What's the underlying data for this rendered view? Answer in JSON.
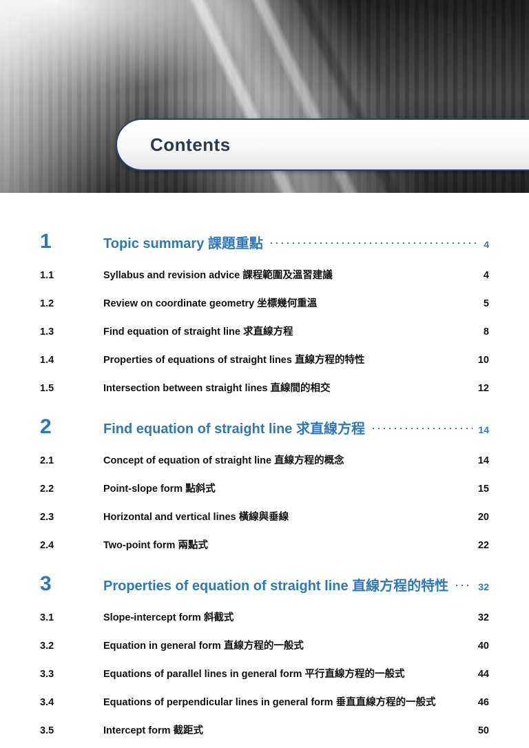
{
  "colors": {
    "accent": "#2f78b6",
    "title_bar_border": "#27456f",
    "body_text": "#111111",
    "background": "#ffffff"
  },
  "typography": {
    "font_family": "Arial / Helvetica",
    "title_fontsize_pt": 20,
    "chapter_num_fontsize_pt": 22,
    "chapter_title_fontsize_pt": 15,
    "sub_fontsize_pt": 11
  },
  "header": {
    "title": "Contents"
  },
  "toc": {
    "leader_style": "dotted",
    "chapters": [
      {
        "num": "1",
        "title": "Topic summary 課題重點",
        "page": "4",
        "sections": [
          {
            "num": "1.1",
            "title": "Syllabus and revision advice 課程範圍及溫習建議",
            "page": "4"
          },
          {
            "num": "1.2",
            "title": "Review on coordinate geometry 坐標幾何重溫",
            "page": "5"
          },
          {
            "num": "1.3",
            "title": "Find equation of straight line 求直線方程",
            "page": "8"
          },
          {
            "num": "1.4",
            "title": "Properties of equations of straight lines 直線方程的特性",
            "page": "10"
          },
          {
            "num": "1.5",
            "title": "Intersection between straight lines 直線間的相交",
            "page": "12"
          }
        ]
      },
      {
        "num": "2",
        "title": "Find equation of straight line 求直線方程",
        "page": "14",
        "sections": [
          {
            "num": "2.1",
            "title": "Concept of equation of straight line 直線方程的概念",
            "page": "14"
          },
          {
            "num": "2.2",
            "title": "Point-slope form 點斜式",
            "page": "15"
          },
          {
            "num": "2.3",
            "title": "Horizontal and vertical lines 橫線與垂線",
            "page": "20"
          },
          {
            "num": "2.4",
            "title": "Two-point form 兩點式",
            "page": "22"
          }
        ]
      },
      {
        "num": "3",
        "title": "Properties of equation of straight line 直線方程的特性",
        "page": "32",
        "sections": [
          {
            "num": "3.1",
            "title": "Slope-intercept form 斜截式",
            "page": "32"
          },
          {
            "num": "3.2",
            "title": "Equation in general form 直線方程的一般式",
            "page": "40"
          },
          {
            "num": "3.3",
            "title": "Equations of parallel lines in general form 平行直線方程的一般式",
            "page": "44"
          },
          {
            "num": "3.4",
            "title": "Equations of perpendicular lines in general form 垂直直線方程的一般式",
            "page": "46"
          },
          {
            "num": "3.5",
            "title": "Intercept form 截距式",
            "page": "50"
          }
        ]
      }
    ]
  }
}
